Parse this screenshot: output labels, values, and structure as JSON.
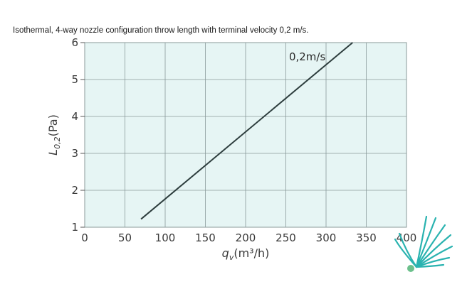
{
  "title": "Isothermal, 4-way nozzle configuration throw length with terminal velocity 0,2 m/s.",
  "colors": {
    "plot_background": "#e6f5f4",
    "grid": "#8a9a9a",
    "line": "#2d3d3d",
    "logo_primary": "#2ab3b0",
    "logo_dot": "#6cc08c"
  },
  "logo": {
    "icon": "nozzle-fan-logo-icon"
  },
  "chart_data": {
    "type": "line",
    "title": "Isothermal, 4-way nozzle configuration throw length with terminal velocity 0,2 m/s.",
    "xlabel": "q",
    "xlabel_sub": "v",
    "xlabel_unit": "(m³/h)",
    "ylabel": "L",
    "ylabel_sub": "0,2",
    "ylabel_unit": "(Pa)",
    "xlim": [
      0,
      400
    ],
    "ylim": [
      1,
      6
    ],
    "xticks": [
      "0",
      "50",
      "100",
      "150",
      "200",
      "250",
      "300",
      "350",
      "400"
    ],
    "yticks": [
      "1",
      "2",
      "3",
      "4",
      "5",
      "6"
    ],
    "grid": true,
    "series": [
      {
        "name": "0,2m/s",
        "x": [
          70,
          333
        ],
        "y": [
          1.22,
          6.0
        ]
      }
    ]
  }
}
